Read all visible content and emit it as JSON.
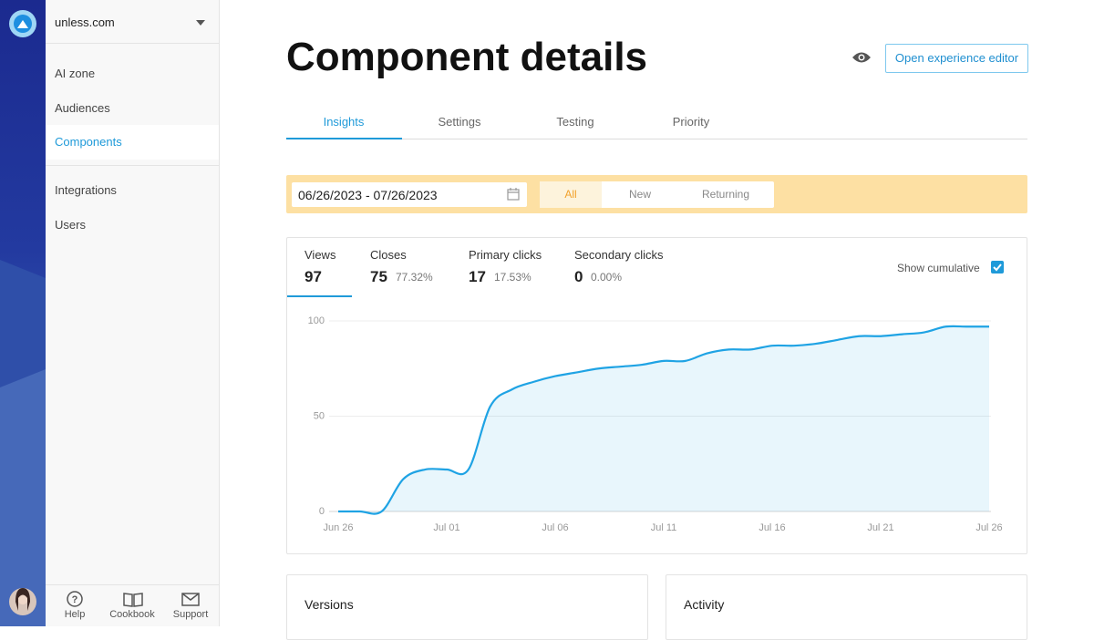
{
  "sidebar": {
    "site": "unless.com",
    "nav": [
      "AI zone",
      "Audiences",
      "Components",
      "Integrations",
      "Users"
    ],
    "footer": [
      "Help",
      "Cookbook",
      "Support"
    ]
  },
  "header": {
    "title": "Component details",
    "button": "Open experience editor"
  },
  "tabs": [
    "Insights",
    "Settings",
    "Testing",
    "Priority"
  ],
  "filters": {
    "date_range": "06/26/2023 - 07/26/2023",
    "segments": [
      "All",
      "New",
      "Returning"
    ]
  },
  "metrics": [
    {
      "label": "Views",
      "value": "97"
    },
    {
      "label": "Closes",
      "value": "75",
      "rate": "77.32%"
    },
    {
      "label": "Primary clicks",
      "value": "17",
      "rate": "17.53%"
    },
    {
      "label": "Secondary clicks",
      "value": "0",
      "rate": "0.00%"
    }
  ],
  "chart_controls": {
    "label": "Show cumulative",
    "checked": true
  },
  "chart_data": {
    "type": "line",
    "categories": [
      "Jun 26",
      null,
      null,
      null,
      null,
      "Jul 01",
      null,
      null,
      null,
      null,
      "Jul 06",
      null,
      null,
      null,
      null,
      "Jul 11",
      null,
      null,
      null,
      null,
      "Jul 16",
      null,
      null,
      null,
      null,
      "Jul 21",
      null,
      null,
      null,
      null,
      "Jul 26"
    ],
    "values": [
      0,
      0,
      0,
      17,
      22,
      22,
      22,
      55,
      64,
      68,
      71,
      73,
      75,
      76,
      77,
      79,
      79,
      83,
      85,
      85,
      87,
      87,
      88,
      90,
      92,
      92,
      93,
      94,
      97,
      97,
      97
    ],
    "color": "#1fa3e4",
    "ylim": [
      0,
      100
    ],
    "yticks": [
      0,
      50,
      100
    ],
    "grid": true
  },
  "panels": [
    "Versions",
    "Activity"
  ]
}
